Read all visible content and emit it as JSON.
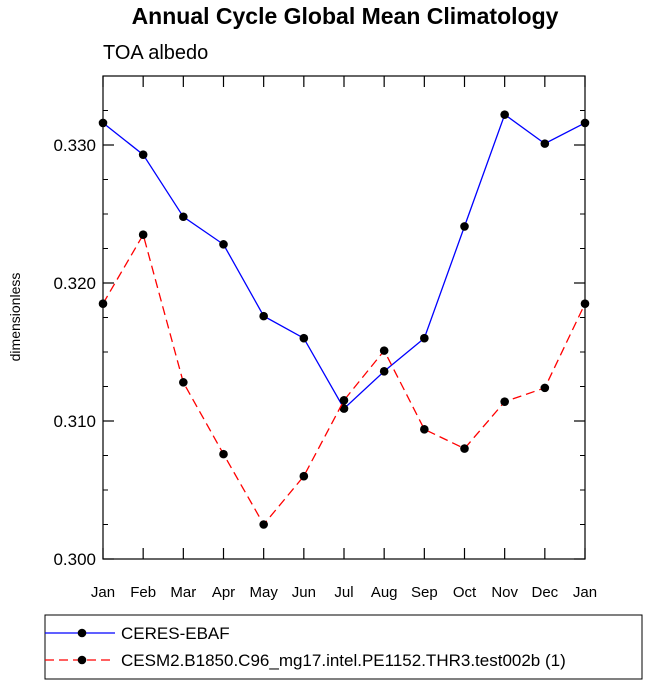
{
  "chart_data": {
    "type": "line",
    "title": "Annual Cycle Global Mean Climatology",
    "subtitle": "TOA albedo",
    "xlabel": "",
    "ylabel": "dimensionless",
    "categories": [
      "Jan",
      "Feb",
      "Mar",
      "Apr",
      "May",
      "Jun",
      "Jul",
      "Aug",
      "Sep",
      "Oct",
      "Nov",
      "Dec",
      "Jan"
    ],
    "ylim": [
      0.3,
      0.335
    ],
    "yticks": [
      0.3,
      0.31,
      0.32,
      0.33
    ],
    "ytick_labels": [
      "0.300",
      "0.310",
      "0.320",
      "0.330"
    ],
    "series": [
      {
        "name": "CERES-EBAF",
        "color": "#0000ff",
        "dash": "solid",
        "values": [
          0.3316,
          0.3293,
          0.3248,
          0.3228,
          0.3176,
          0.316,
          0.3109,
          0.3136,
          0.316,
          0.3241,
          0.3322,
          0.3301,
          0.3316
        ]
      },
      {
        "name": "CESM2.B1850.C96_mg17.intel.PE1152.THR3.test002b (1)",
        "color": "#ff0000",
        "dash": "dashed",
        "values": [
          0.3185,
          0.3235,
          0.3128,
          0.3076,
          0.3025,
          0.306,
          0.3115,
          0.3151,
          0.3094,
          0.308,
          0.3114,
          0.3124,
          0.3185
        ]
      }
    ],
    "legend_position": "bottom"
  }
}
